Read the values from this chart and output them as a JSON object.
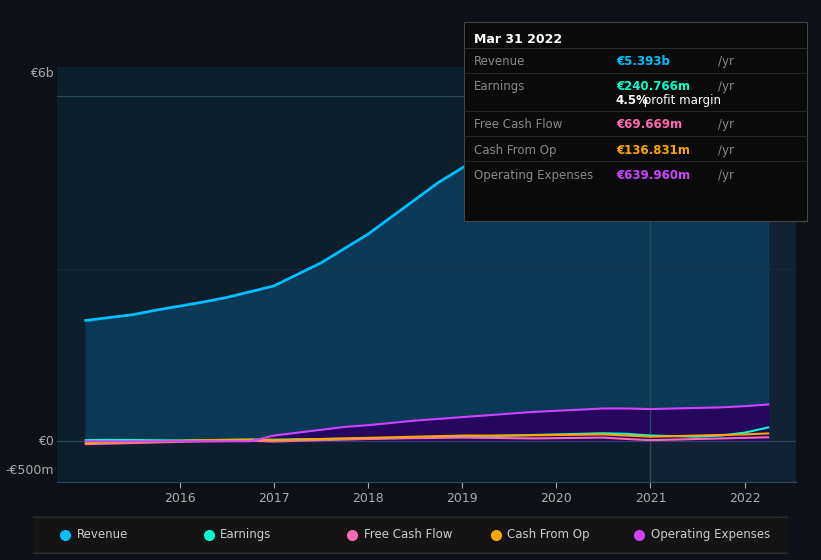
{
  "bg_color": "#0d1117",
  "chart_bg_color": "#0d1f2d",
  "chart_bg_right": "#132233",
  "grid_color": "#1e3a4a",
  "ylabel_top": "€6b",
  "ylabel_mid": "€0",
  "ylabel_bot": "-€500m",
  "x_years": [
    2015.0,
    2015.25,
    2015.5,
    2015.75,
    2016.0,
    2016.25,
    2016.5,
    2016.75,
    2017.0,
    2017.25,
    2017.5,
    2017.75,
    2018.0,
    2018.25,
    2018.5,
    2018.75,
    2019.0,
    2019.25,
    2019.5,
    2019.75,
    2020.0,
    2020.25,
    2020.5,
    2020.75,
    2021.0,
    2021.25,
    2021.5,
    2021.75,
    2022.0,
    2022.25
  ],
  "revenue": [
    2100,
    2150,
    2200,
    2280,
    2350,
    2420,
    2500,
    2600,
    2700,
    2900,
    3100,
    3350,
    3600,
    3900,
    4200,
    4500,
    4750,
    5000,
    5200,
    5450,
    5700,
    5900,
    6000,
    5900,
    5300,
    4900,
    4700,
    4900,
    5100,
    5393
  ],
  "earnings": [
    20,
    25,
    22,
    18,
    15,
    20,
    25,
    30,
    28,
    35,
    40,
    45,
    50,
    55,
    60,
    70,
    80,
    90,
    100,
    110,
    120,
    130,
    140,
    130,
    100,
    90,
    80,
    100,
    150,
    241
  ],
  "free_cash_flow": [
    -50,
    -40,
    -30,
    -20,
    -10,
    0,
    5,
    10,
    -5,
    10,
    20,
    30,
    40,
    50,
    55,
    60,
    65,
    60,
    55,
    50,
    55,
    60,
    65,
    40,
    20,
    30,
    40,
    50,
    60,
    70
  ],
  "cash_from_op": [
    -30,
    -20,
    -10,
    0,
    10,
    20,
    25,
    30,
    20,
    30,
    40,
    50,
    60,
    70,
    80,
    90,
    100,
    100,
    100,
    105,
    110,
    115,
    120,
    100,
    80,
    90,
    100,
    110,
    120,
    137
  ],
  "operating_expenses": [
    0,
    0,
    0,
    0,
    0,
    0,
    0,
    0,
    100,
    150,
    200,
    250,
    280,
    320,
    360,
    390,
    420,
    450,
    480,
    510,
    530,
    550,
    570,
    570,
    560,
    570,
    580,
    590,
    610,
    640
  ],
  "revenue_color": "#00bfff",
  "earnings_color": "#00ffcc",
  "fcf_color": "#ff69b4",
  "cashop_color": "#ffa500",
  "opex_color": "#cc44ff",
  "revenue_fill": "#0a3a5a",
  "opex_fill": "#2a0060",
  "divider_x": 2021.0,
  "ylim_min": -700,
  "ylim_max": 6500,
  "info_box": {
    "date": "Mar 31 2022",
    "revenue_label": "Revenue",
    "revenue_val": "€5.393b",
    "revenue_color": "#00bfff",
    "earnings_label": "Earnings",
    "earnings_val": "€240.766m",
    "earnings_color": "#00ffcc",
    "margin_val": "4.5%",
    "margin_label": " profit margin",
    "fcf_label": "Free Cash Flow",
    "fcf_val": "€69.669m",
    "fcf_color": "#ff69b4",
    "cashop_label": "Cash From Op",
    "cashop_val": "€136.831m",
    "cashop_color": "#ffa500",
    "opex_label": "Operating Expenses",
    "opex_val": "€639.960m",
    "opex_color": "#cc44ff"
  },
  "legend_items": [
    {
      "label": "Revenue",
      "color": "#00bfff"
    },
    {
      "label": "Earnings",
      "color": "#00ffcc"
    },
    {
      "label": "Free Cash Flow",
      "color": "#ff69b4"
    },
    {
      "label": "Cash From Op",
      "color": "#ffa500"
    },
    {
      "label": "Operating Expenses",
      "color": "#cc44ff"
    }
  ],
  "xticks": [
    2016,
    2017,
    2018,
    2019,
    2020,
    2021,
    2022
  ],
  "xtick_labels": [
    "2016",
    "2017",
    "2018",
    "2019",
    "2020",
    "2021",
    "2022"
  ]
}
